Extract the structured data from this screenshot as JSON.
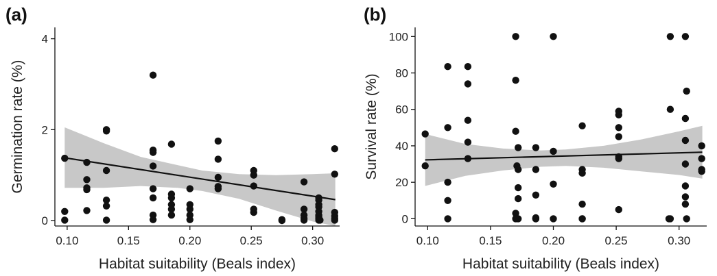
{
  "chart_data": [
    {
      "type": "scatter",
      "panel_label": "(a)",
      "xlabel": "Habitat suitability (Beals index)",
      "ylabel": "Germination rate (%)",
      "xlim": [
        0.09,
        0.322
      ],
      "ylim": [
        -0.12,
        4.25
      ],
      "x_ticks": [
        0.1,
        0.15,
        0.2,
        0.25,
        0.3
      ],
      "x_tick_labels": [
        "0.10",
        "0.15",
        "0.20",
        "0.25",
        "0.30"
      ],
      "y_ticks": [
        0,
        2,
        4
      ],
      "y_tick_labels": [
        "0",
        "2",
        "4"
      ],
      "fit": {
        "x": [
          0.098,
          0.3185
        ],
        "y": [
          1.38,
          0.46
        ],
        "band_x": [
          0.098,
          0.13,
          0.16,
          0.19,
          0.21,
          0.24,
          0.27,
          0.3,
          0.3185
        ],
        "band_lower": [
          0.72,
          0.72,
          0.76,
          0.72,
          0.65,
          0.48,
          0.22,
          -0.02,
          -0.12
        ],
        "band_upper": [
          2.05,
          1.7,
          1.4,
          1.22,
          1.1,
          1.02,
          1.0,
          1.02,
          1.04
        ]
      },
      "points": {
        "x": [
          0.098,
          0.098,
          0.098,
          0.116,
          0.116,
          0.116,
          0.116,
          0.116,
          0.132,
          0.132,
          0.132,
          0.132,
          0.132,
          0.132,
          0.17,
          0.17,
          0.17,
          0.17,
          0.17,
          0.17,
          0.17,
          0.17,
          0.185,
          0.185,
          0.185,
          0.185,
          0.185,
          0.185,
          0.2,
          0.2,
          0.2,
          0.2,
          0.2,
          0.223,
          0.223,
          0.223,
          0.223,
          0.223,
          0.252,
          0.252,
          0.252,
          0.252,
          0.252,
          0.275,
          0.275,
          0.293,
          0.293,
          0.293,
          0.293,
          0.293,
          0.305,
          0.305,
          0.305,
          0.305,
          0.305,
          0.305,
          0.305,
          0.305,
          0.305,
          0.306,
          0.318,
          0.318,
          0.318,
          0.318,
          0.318,
          0.318
        ],
        "y": [
          1.37,
          0.2,
          0.01,
          1.28,
          0.9,
          0.72,
          0.68,
          0.22,
          2.0,
          1.97,
          1.1,
          0.45,
          0.32,
          0.01,
          3.2,
          1.55,
          1.5,
          1.2,
          0.7,
          0.5,
          0.12,
          0.02,
          1.68,
          0.58,
          0.5,
          0.35,
          0.25,
          0.12,
          0.7,
          0.35,
          0.25,
          0.12,
          0.02,
          1.75,
          1.35,
          0.95,
          0.75,
          0.7,
          1.1,
          1.0,
          0.76,
          0.25,
          0.18,
          0.02,
          0.0,
          0.85,
          0.25,
          0.12,
          0.05,
          0.01,
          0.5,
          0.45,
          0.35,
          0.3,
          0.2,
          0.12,
          0.08,
          0.04,
          0.01,
          0.01,
          1.58,
          1.02,
          0.18,
          0.1,
          0.05,
          0.01
        ]
      }
    },
    {
      "type": "scatter",
      "panel_label": "(b)",
      "xlabel": "Habitat suitability (Beals index)",
      "ylabel": "Survival rate (%)",
      "xlim": [
        0.09,
        0.322
      ],
      "ylim": [
        -4,
        105
      ],
      "x_ticks": [
        0.1,
        0.15,
        0.2,
        0.25,
        0.3
      ],
      "x_tick_labels": [
        "0.10",
        "0.15",
        "0.20",
        "0.25",
        "0.30"
      ],
      "y_ticks": [
        0,
        20,
        40,
        60,
        80,
        100
      ],
      "y_tick_labels": [
        "0",
        "20",
        "40",
        "60",
        "80",
        "100"
      ],
      "fit": {
        "x": [
          0.098,
          0.3185
        ],
        "y": [
          32.3,
          36.5
        ],
        "band_x": [
          0.098,
          0.13,
          0.16,
          0.19,
          0.21,
          0.24,
          0.27,
          0.3,
          0.3185
        ],
        "band_lower": [
          18.0,
          23.5,
          26.5,
          28.5,
          29.0,
          28.0,
          26.0,
          24.0,
          22.0
        ],
        "band_upper": [
          46.5,
          41.0,
          38.5,
          37.5,
          38.0,
          40.0,
          43.5,
          48.0,
          51.0
        ]
      },
      "points": {
        "x": [
          0.098,
          0.098,
          0.116,
          0.116,
          0.116,
          0.116,
          0.116,
          0.132,
          0.132,
          0.132,
          0.132,
          0.132,
          0.17,
          0.17,
          0.17,
          0.17,
          0.17,
          0.171,
          0.172,
          0.172,
          0.172,
          0.172,
          0.172,
          0.186,
          0.186,
          0.186,
          0.186,
          0.186,
          0.186,
          0.2,
          0.2,
          0.2,
          0.2,
          0.223,
          0.223,
          0.223,
          0.223,
          0.223,
          0.223,
          0.252,
          0.252,
          0.252,
          0.252,
          0.252,
          0.252,
          0.252,
          0.292,
          0.293,
          0.293,
          0.293,
          0.305,
          0.305,
          0.305,
          0.305,
          0.305,
          0.305,
          0.305,
          0.306,
          0.306,
          0.318,
          0.318,
          0.318,
          0.318
        ],
        "y": [
          46.5,
          29.0,
          83.5,
          50.0,
          20.0,
          10.0,
          0.0,
          83.5,
          74.0,
          54.0,
          42.0,
          33.0,
          100.0,
          76.0,
          48.0,
          3.0,
          0.0,
          29.0,
          39.0,
          27.0,
          17.0,
          11.0,
          0.0,
          39.0,
          27.0,
          13.0,
          0.5,
          0.0,
          0.0,
          100.0,
          37.0,
          19.0,
          0.0,
          51.0,
          27.0,
          25.0,
          8.0,
          0.0,
          0.0,
          59.0,
          57.0,
          50.0,
          45.0,
          34.0,
          33.0,
          5.0,
          0.0,
          100.0,
          60.0,
          0.0,
          100.0,
          55.0,
          43.0,
          30.0,
          18.0,
          12.0,
          8.0,
          70.0,
          0.0,
          40.0,
          33.0,
          27.0,
          26.0
        ]
      }
    }
  ]
}
